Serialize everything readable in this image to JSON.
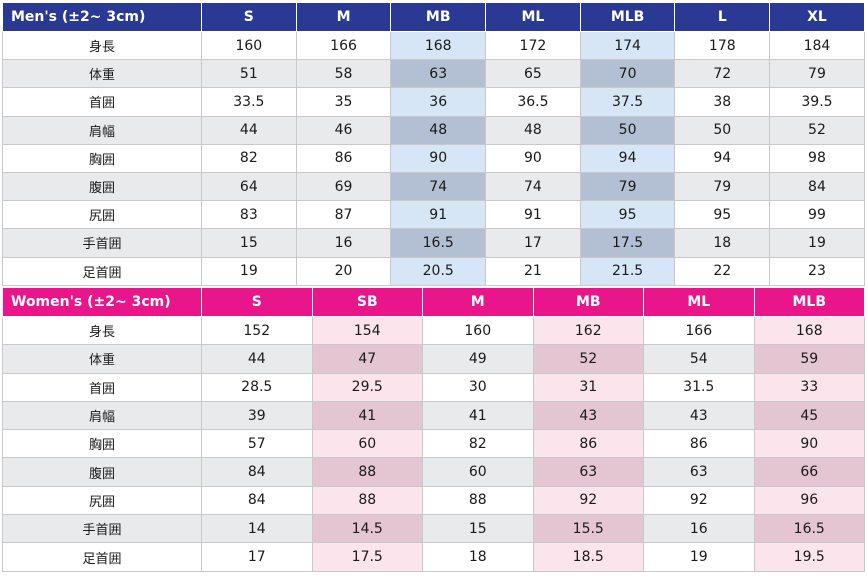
{
  "men": {
    "header": "Men's (±2~ 3cm)",
    "sizes": [
      "S",
      "M",
      "MB",
      "ML",
      "MLB",
      "L",
      "XL"
    ],
    "highlight": [
      "MB",
      "MLB"
    ],
    "rows": [
      {
        "label": "身長",
        "values": [
          "160",
          "166",
          "168",
          "172",
          "174",
          "178",
          "184"
        ]
      },
      {
        "label": "体重",
        "values": [
          "51",
          "58",
          "63",
          "65",
          "70",
          "72",
          "79"
        ]
      },
      {
        "label": "首囲",
        "values": [
          "33.5",
          "35",
          "36",
          "36.5",
          "37.5",
          "38",
          "39.5"
        ]
      },
      {
        "label": "肩幅",
        "values": [
          "44",
          "46",
          "48",
          "48",
          "50",
          "50",
          "52"
        ]
      },
      {
        "label": "胸囲",
        "values": [
          "82",
          "86",
          "90",
          "90",
          "94",
          "94",
          "98"
        ]
      },
      {
        "label": "腹囲",
        "values": [
          "64",
          "69",
          "74",
          "74",
          "79",
          "79",
          "84"
        ]
      },
      {
        "label": "尻囲",
        "values": [
          "83",
          "87",
          "91",
          "91",
          "95",
          "95",
          "99"
        ]
      },
      {
        "label": "手首囲",
        "values": [
          "15",
          "16",
          "16.5",
          "17",
          "17.5",
          "18",
          "19"
        ]
      },
      {
        "label": "足首囲",
        "values": [
          "19",
          "20",
          "20.5",
          "21",
          "21.5",
          "22",
          "23"
        ]
      }
    ]
  },
  "women": {
    "header": "Women's (±2~ 3cm)",
    "sizes": [
      "S",
      "SB",
      "M",
      "MB",
      "ML",
      "MLB"
    ],
    "highlight": [
      "SB",
      "MB",
      "MLB"
    ],
    "rows": [
      {
        "label": "身長",
        "values": [
          "152",
          "154",
          "160",
          "162",
          "166",
          "168"
        ]
      },
      {
        "label": "体重",
        "values": [
          "44",
          "47",
          "49",
          "52",
          "54",
          "59"
        ]
      },
      {
        "label": "首囲",
        "values": [
          "28.5",
          "29.5",
          "30",
          "31",
          "31.5",
          "33"
        ]
      },
      {
        "label": "肩幅",
        "values": [
          "39",
          "41",
          "41",
          "43",
          "43",
          "45"
        ]
      },
      {
        "label": "胸囲",
        "values": [
          "57",
          "60",
          "82",
          "86",
          "86",
          "90"
        ]
      },
      {
        "label": "腹囲",
        "values": [
          "84",
          "88",
          "60",
          "63",
          "63",
          "66"
        ]
      },
      {
        "label": "尻囲",
        "values": [
          "84",
          "88",
          "88",
          "92",
          "92",
          "96"
        ]
      },
      {
        "label": "手首囲",
        "values": [
          "14",
          "14.5",
          "15",
          "15.5",
          "16",
          "16.5"
        ]
      },
      {
        "label": "足首囲",
        "values": [
          "17",
          "17.5",
          "18",
          "18.5",
          "19",
          "19.5"
        ]
      }
    ]
  },
  "colors": {
    "men_header": "#2a3a94",
    "women_header": "#e8168a",
    "men_highlight": "#d6e6f7",
    "women_highlight": "#fbe4ec"
  }
}
